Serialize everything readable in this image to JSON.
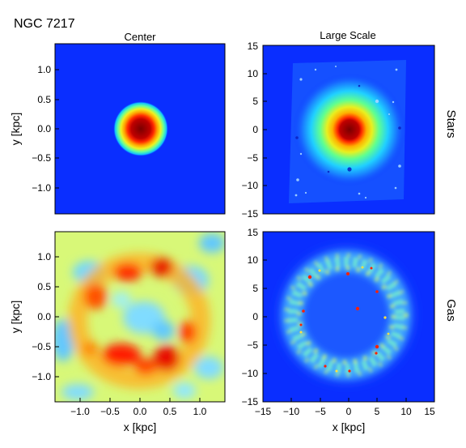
{
  "figure": {
    "title": "NGC 7217",
    "column_titles": [
      "Center",
      "Large Scale"
    ],
    "row_labels": [
      "Stars",
      "Gas"
    ]
  },
  "chart_data": [
    {
      "type": "heatmap",
      "panel": "stars-center",
      "title": "Center",
      "ylabel": "y [kpc]",
      "xlabel": "",
      "xlim": [
        -1.45,
        1.45
      ],
      "ylim": [
        -1.45,
        1.45
      ],
      "yticks": [
        -1.0,
        -0.5,
        0.0,
        0.5,
        1.0
      ],
      "ytick_labels": [
        "−1.0",
        "−0.5",
        "0.0",
        "0.5",
        "1.0"
      ],
      "xticks": [],
      "colormap": "jet",
      "content": "concentrated stellar bulge, peak at (0,0), radius ~0.25 kpc"
    },
    {
      "type": "heatmap",
      "panel": "stars-large",
      "title": "Large Scale",
      "xlabel": "",
      "ylabel": "",
      "xlim": [
        -15,
        15
      ],
      "ylim": [
        -15,
        15
      ],
      "yticks": [
        -15,
        -10,
        -5,
        0,
        5,
        10,
        15
      ],
      "ytick_labels": [
        "−15",
        "−10",
        "−5",
        "0",
        "5",
        "10",
        "15"
      ],
      "xticks": [],
      "colormap": "jet",
      "content": "stellar disk, bright core at (0,0) with extended halo"
    },
    {
      "type": "heatmap",
      "panel": "gas-center",
      "xlabel": "x [kpc]",
      "ylabel": "y [kpc]",
      "xlim": [
        -1.45,
        1.45
      ],
      "ylim": [
        -1.45,
        1.45
      ],
      "xticks": [
        -1.0,
        -0.5,
        0.0,
        0.5,
        1.0
      ],
      "xtick_labels": [
        "−1.0",
        "−0.5",
        "0.0",
        "0.5",
        "1.0"
      ],
      "yticks": [
        -1.0,
        -0.5,
        0.0,
        0.5,
        1.0
      ],
      "ytick_labels": [
        "−1.0",
        "−0.5",
        "0.0",
        "0.5",
        "1.0"
      ],
      "colormap": "jet",
      "content": "gas ring of radius ~0.7 kpc, strongest in lower half"
    },
    {
      "type": "heatmap",
      "panel": "gas-large",
      "xlabel": "x [kpc]",
      "ylabel": "",
      "xlim": [
        -15,
        15
      ],
      "ylim": [
        -15,
        15
      ],
      "xticks": [
        -15,
        -10,
        -5,
        0,
        5,
        10,
        15
      ],
      "xtick_labels": [
        "−15",
        "−10",
        "−5",
        "0",
        "5",
        "10",
        "15"
      ],
      "yticks": [
        -15,
        -10,
        -5,
        0,
        5,
        10,
        15
      ],
      "ytick_labels": [
        "−15",
        "−10",
        "−5",
        "0",
        "5",
        "10",
        "15"
      ],
      "colormap": "jet",
      "content": "clumpy gas ring of radius ~8 kpc"
    }
  ]
}
